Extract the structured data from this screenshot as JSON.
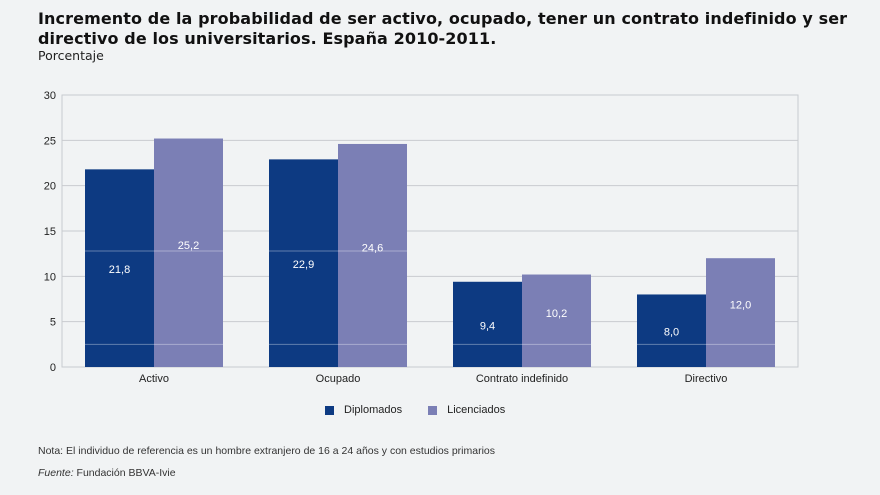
{
  "chart_data": {
    "type": "bar",
    "title": "Incremento de la probabilidad de ser activo, ocupado, tener un contrato indefinido y ser directivo de los universitarios. España 2010-2011.",
    "subtitle": "Porcentaje",
    "xlabel": "",
    "ylabel": "",
    "ylim": [
      0,
      30
    ],
    "yticks": [
      "0",
      "5",
      "10",
      "15",
      "20",
      "25",
      "30"
    ],
    "ytick_values": [
      0,
      5,
      10,
      15,
      20,
      25,
      30
    ],
    "grid": true,
    "categories": [
      "Activo",
      "Ocupado",
      "Contrato indefinido",
      "Directivo"
    ],
    "series": [
      {
        "name": "Diplomados",
        "color": "#0d3a82",
        "values": [
          21.8,
          22.9,
          9.4,
          8.0
        ],
        "labels": [
          "21,8",
          "22,9",
          "9,4",
          "8,0"
        ]
      },
      {
        "name": "Licenciados",
        "color": "#7b7fb5",
        "values": [
          25.2,
          24.6,
          10.2,
          12.0
        ],
        "labels": [
          "25,2",
          "24,6",
          "10,2",
          "12,0"
        ]
      }
    ],
    "legend_position": "bottom"
  },
  "footer": {
    "note": "Nota: El individuo de referencia es un hombre extranjero de 16 a 24 años y con estudios primarios",
    "source_label": "Fuente:",
    "source_text": " Fundación BBVA-Ivie"
  }
}
